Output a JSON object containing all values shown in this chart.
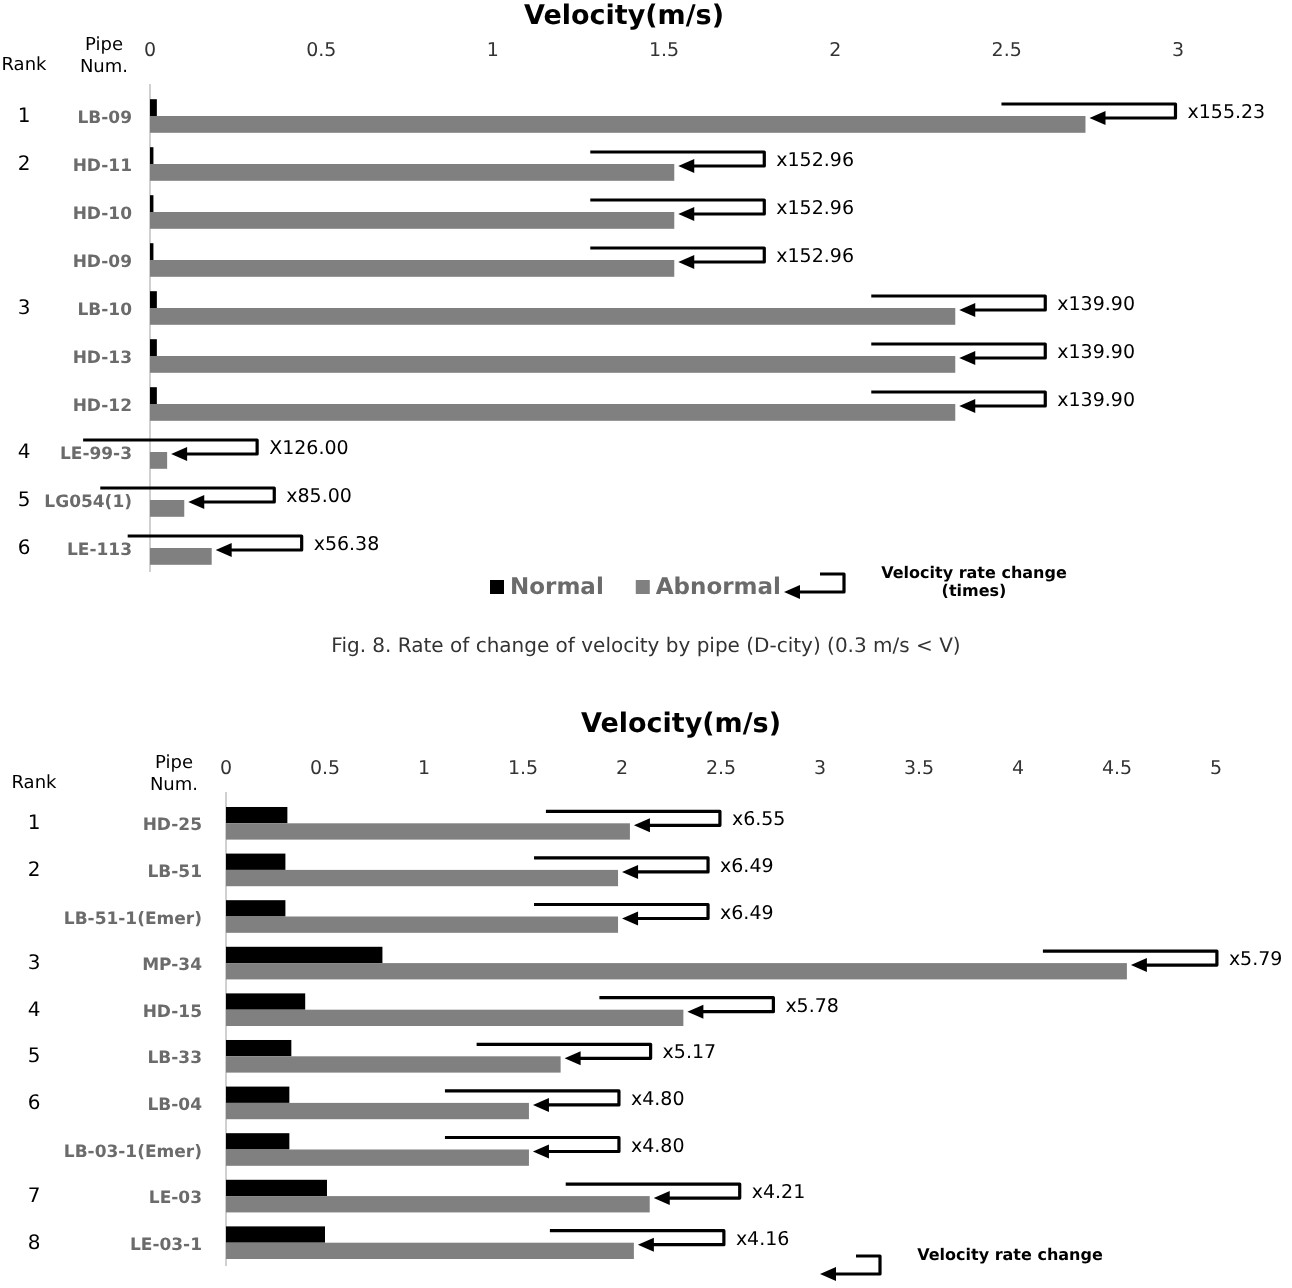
{
  "chart_data": [
    {
      "type": "bar",
      "orientation": "horizontal",
      "title": "Velocity(m/s)",
      "ylabel": "Pipe Num.",
      "legend": "bottom",
      "categories": [
        "LB-09",
        "HD-11",
        "HD-10",
        "HD-09",
        "LB-10",
        "HD-13",
        "HD-12",
        "LE-99-3",
        "LG054(1)",
        "LE-113"
      ],
      "series": [
        {
          "name": "Normal",
          "color": "#000000",
          "values": [
            0.02,
            0.01,
            0.01,
            0.01,
            0.02,
            0.02,
            0.02,
            null,
            null,
            null
          ]
        },
        {
          "name": "Abnormal",
          "color": "#808080",
          "values": [
            2.73,
            1.53,
            1.53,
            1.53,
            2.35,
            2.35,
            2.35,
            0.05,
            0.1,
            0.18
          ],
          "value_labels": [
            "x155.23",
            "x152.96",
            "x152.96",
            "x152.96",
            "x139.90",
            "x139.90",
            "x139.90",
            "X126.00",
            "x85.00",
            "x56.38"
          ]
        }
      ],
      "xlim": [
        0,
        3
      ],
      "xticks": [
        0,
        0.5,
        1,
        1.5,
        2,
        2.5,
        3
      ],
      "annotations": [
        "Rank",
        "Velocity rate change (times)",
        "Fig. 8. Rate of change of velocity by pipe (D-city) (0.3 m/s < V)",
        "1",
        "2",
        "3",
        "4",
        "5",
        "6"
      ]
    },
    {
      "type": "bar",
      "orientation": "horizontal",
      "title": "Velocity(m/s)",
      "ylabel": "Pipe Num.",
      "categories": [
        "HD-25",
        "LB-51",
        "LB-51-1(Emer)",
        "MP-34",
        "HD-15",
        "LB-33",
        "LB-04",
        "LB-03-1(Emer)",
        "LE-03",
        "LE-03-1"
      ],
      "series": [
        {
          "color": "#000000",
          "values": [
            0.31,
            0.3,
            0.3,
            0.79,
            0.4,
            0.33,
            0.32,
            0.32,
            0.51,
            0.5
          ]
        },
        {
          "color": "#808080",
          "values": [
            2.04,
            1.98,
            1.98,
            4.55,
            2.31,
            1.69,
            1.53,
            1.53,
            2.14,
            2.06
          ],
          "value_labels": [
            "x6.55",
            "x6.49",
            "x6.49",
            "x5.79",
            "x5.78",
            "x5.17",
            "x4.80",
            "x4.80",
            "x4.21",
            "x4.16"
          ]
        }
      ],
      "xlim": [
        0,
        5
      ],
      "xticks": [
        0,
        0.5,
        1,
        1.5,
        2,
        2.5,
        3,
        3.5,
        4,
        4.5,
        5
      ],
      "annotations": [
        "Rank",
        "Velocity rate change",
        "1",
        "2",
        "3",
        "4",
        "5",
        "6",
        "7",
        "8"
      ]
    }
  ]
}
